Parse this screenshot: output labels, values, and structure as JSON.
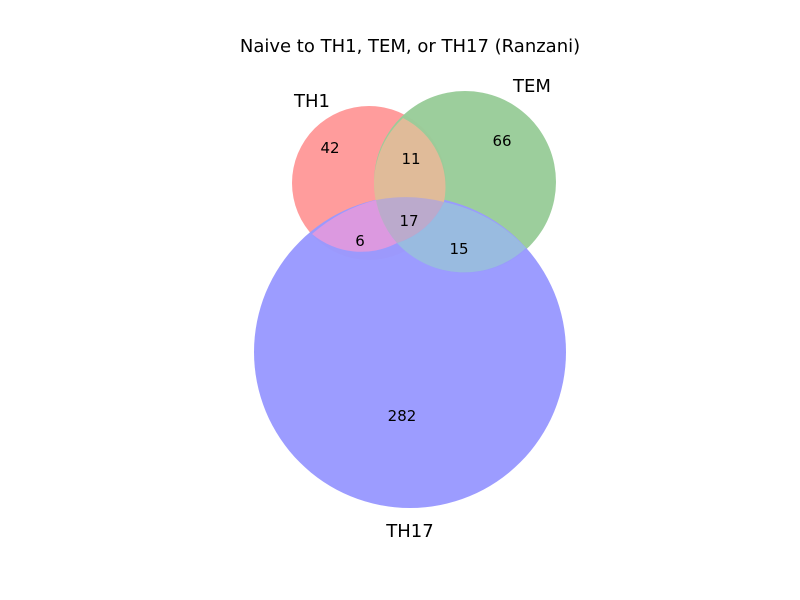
{
  "title": "Naive to TH1, TEM, or TH17 (Ranzani)",
  "sets": [
    {
      "id": "th1",
      "label": "TH1",
      "color": "#ff9999"
    },
    {
      "id": "tem",
      "label": "TEM",
      "color": "#99cc99"
    },
    {
      "id": "th17",
      "label": "TH17",
      "color": "#9999ff"
    }
  ],
  "regions": {
    "th1_only": "42",
    "tem_only": "66",
    "th17_only": "282",
    "th1_tem": "11",
    "th1_th17": "6",
    "tem_th17": "15",
    "th1_tem_th17": "17"
  }
}
